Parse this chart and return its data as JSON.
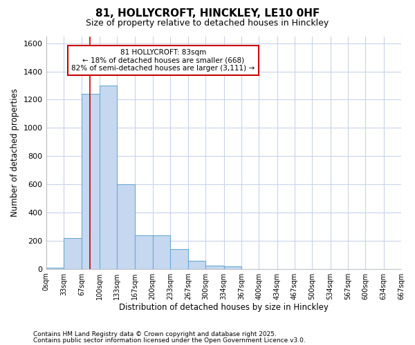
{
  "title": "81, HOLLYCROFT, HINCKLEY, LE10 0HF",
  "subtitle": "Size of property relative to detached houses in Hinckley",
  "xlabel": "Distribution of detached houses by size in Hinckley",
  "ylabel": "Number of detached properties",
  "bin_edges": [
    0,
    33,
    67,
    100,
    133,
    167,
    200,
    233,
    267,
    300,
    334,
    367,
    400,
    434,
    467,
    500,
    534,
    567,
    600,
    634,
    667
  ],
  "bar_heights": [
    10,
    220,
    1240,
    1300,
    600,
    240,
    240,
    140,
    55,
    25,
    20,
    0,
    0,
    0,
    0,
    0,
    0,
    0,
    0,
    0
  ],
  "bar_color": "#c5d8f0",
  "bar_edge_color": "#6aaad4",
  "property_size": 83,
  "vline_color": "#cc0000",
  "annotation_text": "81 HOLLYCROFT: 83sqm\n← 18% of detached houses are smaller (668)\n82% of semi-detached houses are larger (3,111) →",
  "annotation_box_color": "#ffffff",
  "annotation_box_edge_color": "#cc0000",
  "ylim": [
    0,
    1650
  ],
  "yticks": [
    0,
    200,
    400,
    600,
    800,
    1000,
    1200,
    1400,
    1600
  ],
  "background_color": "#ffffff",
  "grid_color": "#c8d4e8",
  "footnote1": "Contains HM Land Registry data © Crown copyright and database right 2025.",
  "footnote2": "Contains public sector information licensed under the Open Government Licence v3.0."
}
